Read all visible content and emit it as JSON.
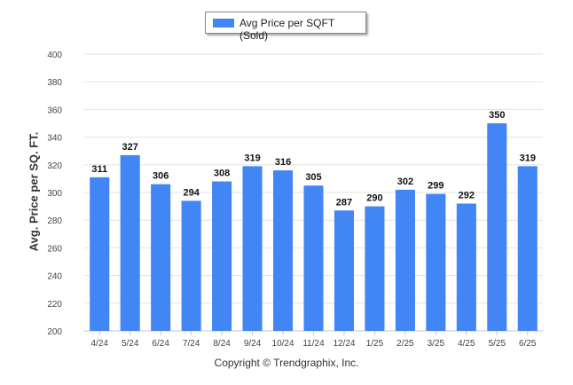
{
  "legend": {
    "label": "Avg Price per SQFT (Sold)",
    "color": "#4285f4"
  },
  "footer": "Copyright © Trendgraphix, Inc.",
  "chart_data": {
    "type": "bar",
    "ylabel": "Avg. Price per SQ. FT.",
    "xlabel": "",
    "categories": [
      "4/24",
      "5/24",
      "6/24",
      "7/24",
      "8/24",
      "9/24",
      "10/24",
      "11/24",
      "12/24",
      "1/25",
      "2/25",
      "3/25",
      "4/25",
      "5/25",
      "6/25"
    ],
    "series": [
      {
        "name": "Avg Price per SQFT (Sold)",
        "values": [
          311,
          327,
          306,
          294,
          308,
          319,
          316,
          305,
          287,
          290,
          302,
          299,
          292,
          350,
          319
        ]
      }
    ],
    "ylim": [
      200,
      400
    ],
    "yticks": [
      200,
      220,
      240,
      260,
      280,
      300,
      320,
      340,
      360,
      380,
      400
    ],
    "bar_color": "#4285f4",
    "grid": true,
    "legend_position": "top-center",
    "data_labels": true
  }
}
